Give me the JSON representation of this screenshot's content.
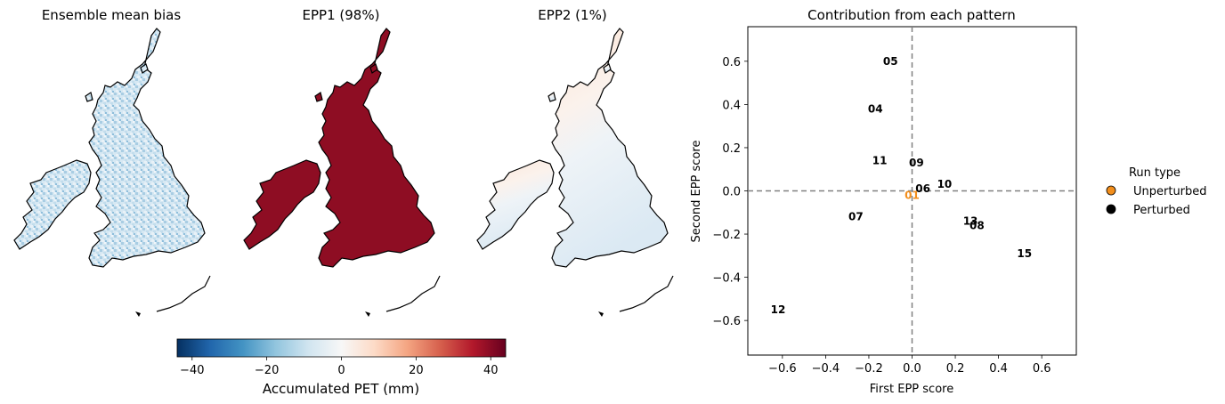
{
  "maps": [
    {
      "title": "Ensemble mean bias",
      "fill": "blue-speckle"
    },
    {
      "title": "EPP1 (98%)",
      "fill": "#8e0d23"
    },
    {
      "title": "EPP2 (1%)",
      "fill": "gradient-red-to-blue"
    }
  ],
  "colorbar": {
    "label": "Accumulated PET (mm)",
    "ticks": [
      "−40",
      "−20",
      "0",
      "20",
      "40"
    ],
    "tick_values": [
      -40,
      -20,
      0,
      20,
      40
    ],
    "range": [
      -44,
      44
    ],
    "colormap": "RdBu_r"
  },
  "legend": {
    "title": "Run type",
    "items": [
      {
        "label": "Unperturbed",
        "color": "#f28e1c"
      },
      {
        "label": "Perturbed",
        "color": "#000000"
      }
    ]
  },
  "chart_data": {
    "type": "scatter",
    "title": "Contribution from each pattern",
    "xlabel": "First EPP score",
    "ylabel": "Second EPP score",
    "xlim": [
      -0.76,
      0.76
    ],
    "ylim": [
      -0.76,
      0.76
    ],
    "xticks": [
      -0.6,
      -0.4,
      -0.2,
      0.0,
      0.2,
      0.4,
      0.6
    ],
    "xtick_labels": [
      "−0.6",
      "−0.4",
      "−0.2",
      "0.0",
      "0.2",
      "0.4",
      "0.6"
    ],
    "yticks": [
      0.6,
      0.4,
      0.2,
      0.0,
      -0.2,
      -0.4,
      -0.6
    ],
    "ytick_labels": [
      "0.6",
      "0.4",
      "0.2",
      "0.0",
      "−0.2",
      "−0.4",
      "−0.6"
    ],
    "reference_lines": {
      "x": 0,
      "y": 0,
      "style": "dashed",
      "color": "#808080"
    },
    "grid": false,
    "legend_position": "outside-right",
    "points": [
      {
        "label": "01",
        "x": 0.0,
        "y": -0.02,
        "type": "Unperturbed",
        "color": "#f28e1c"
      },
      {
        "label": "04",
        "x": -0.17,
        "y": 0.38,
        "type": "Perturbed",
        "color": "#000000"
      },
      {
        "label": "05",
        "x": -0.1,
        "y": 0.6,
        "type": "Perturbed",
        "color": "#000000"
      },
      {
        "label": "06",
        "x": 0.05,
        "y": 0.01,
        "type": "Perturbed",
        "color": "#000000"
      },
      {
        "label": "07",
        "x": -0.26,
        "y": -0.12,
        "type": "Perturbed",
        "color": "#000000"
      },
      {
        "label": "08",
        "x": 0.3,
        "y": -0.16,
        "type": "Perturbed",
        "color": "#000000"
      },
      {
        "label": "09",
        "x": 0.02,
        "y": 0.13,
        "type": "Perturbed",
        "color": "#000000"
      },
      {
        "label": "10",
        "x": 0.15,
        "y": 0.03,
        "type": "Perturbed",
        "color": "#000000"
      },
      {
        "label": "11",
        "x": -0.15,
        "y": 0.14,
        "type": "Perturbed",
        "color": "#000000"
      },
      {
        "label": "12",
        "x": -0.62,
        "y": -0.55,
        "type": "Perturbed",
        "color": "#000000"
      },
      {
        "label": "13",
        "x": 0.27,
        "y": -0.14,
        "type": "Perturbed",
        "color": "#000000"
      },
      {
        "label": "15",
        "x": 0.52,
        "y": -0.29,
        "type": "Perturbed",
        "color": "#000000"
      }
    ]
  }
}
